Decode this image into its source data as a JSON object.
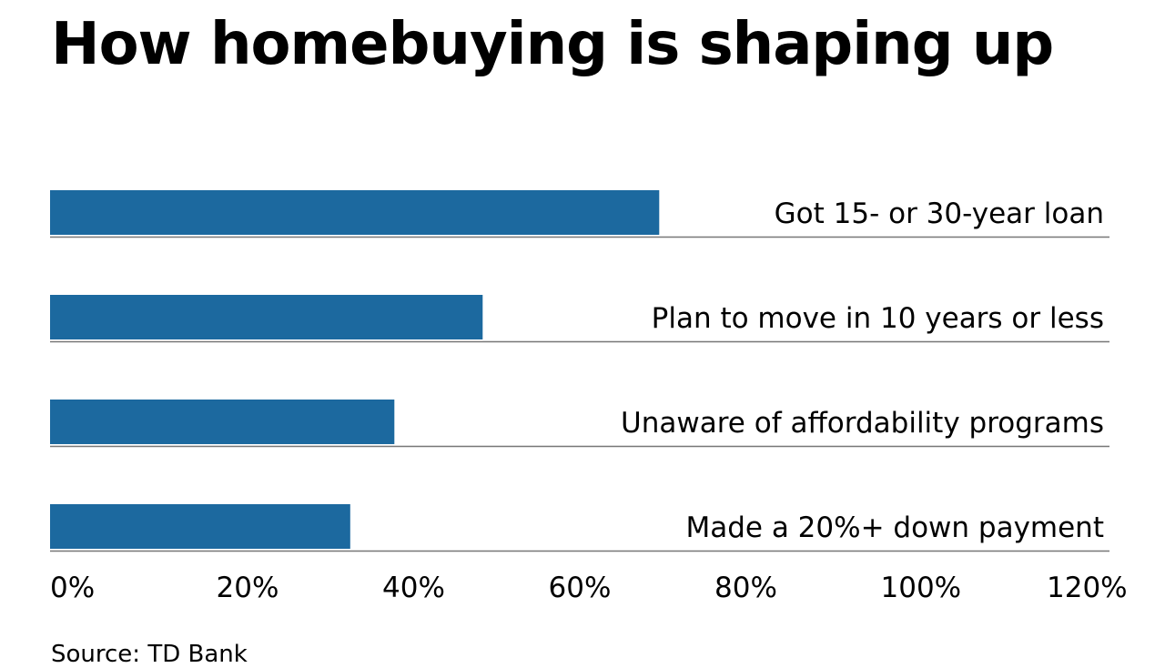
{
  "chart_data": {
    "type": "bar",
    "orientation": "horizontal",
    "title": "How homebuying is shaping up",
    "categories": [
      "Got 15- or 30-year loan",
      "Plan to move in 10 years or less",
      "Unaware of affordability programs",
      "Made a 20%+ down payment"
    ],
    "values": [
      69,
      49,
      39,
      34
    ],
    "xlim": [
      0,
      120
    ],
    "ticks": [
      "0%",
      "20%",
      "40%",
      "60%",
      "80%",
      "100%",
      "120%"
    ],
    "grid": false,
    "bar_color": "#1c699f",
    "source": "Source: TD Bank"
  }
}
